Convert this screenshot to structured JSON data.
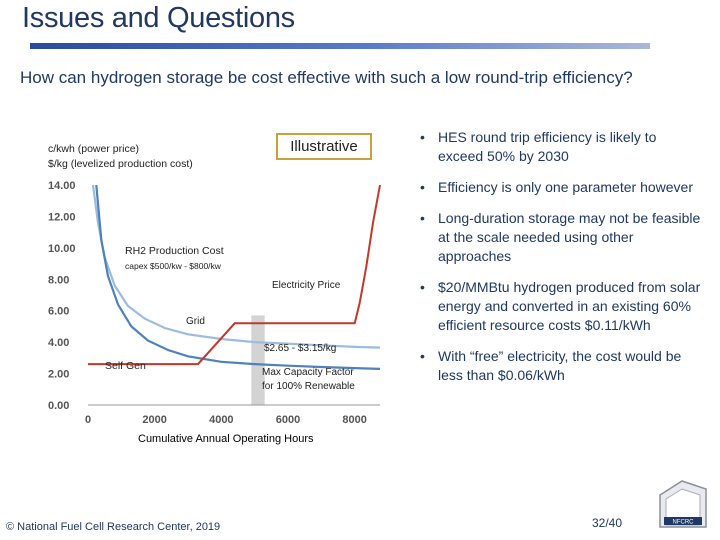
{
  "slide": {
    "title": "Issues and Questions",
    "question": "How can hydrogen storage be cost effective with such a low round-trip efficiency?",
    "footer": "National Fuel Cell Research Center, 2019",
    "copyright_symbol": "©",
    "page_number": "32/40",
    "logo_text": "NFCRC"
  },
  "bullets": [
    "HES round trip efficiency is likely to exceed 50% by 2030",
    "Efficiency is only one parameter however",
    "Long-duration storage may not be feasible at the scale needed using other approaches",
    "$20/MMBtu hydrogen produced from solar energy and converted in an existing 60% efficient resource costs $0.11/kWh",
    "With “free” electricity, the cost would be less than $0.06/kWh"
  ],
  "chart_data": {
    "type": "line",
    "ylabel_lines": [
      "c/kwh (power price)",
      "$/kg (levelized production cost)"
    ],
    "xlabel": "Cumulative Annual Operating Hours",
    "xlim": [
      0,
      8760
    ],
    "ylim": [
      0,
      14
    ],
    "x_ticks": [
      0,
      2000,
      4000,
      6000,
      8000
    ],
    "x_tick_labels": [
      "0",
      "2000",
      "4000",
      "6000",
      "8000"
    ],
    "y_ticks": [
      0,
      2,
      4,
      6,
      8,
      10,
      12,
      14
    ],
    "y_tick_labels": [
      "0.00",
      "2.00",
      "4.00",
      "6.00",
      "8.00",
      "10.00",
      "12.00",
      "14.00"
    ],
    "illustrative_label": "Illustrative",
    "series": [
      {
        "name": "RH2 Production Cost",
        "color": "#9dbbe0",
        "x": [
          150,
          300,
          500,
          800,
          1200,
          1700,
          2300,
          3000,
          4000,
          5000,
          6000,
          7000,
          8000,
          8760
        ],
        "y": [
          14,
          11.6,
          9.4,
          7.6,
          6.3,
          5.5,
          4.9,
          4.5,
          4.2,
          4.0,
          3.9,
          3.8,
          3.7,
          3.65
        ]
      },
      {
        "name": "Self Gen",
        "color": "#4f81bd",
        "x": [
          250,
          400,
          600,
          900,
          1300,
          1800,
          2400,
          3000,
          4000,
          5000,
          6000,
          7000,
          8000,
          8760
        ],
        "y": [
          14,
          10.5,
          8.2,
          6.4,
          5.0,
          4.1,
          3.5,
          3.1,
          2.75,
          2.6,
          2.5,
          2.42,
          2.35,
          2.3
        ]
      },
      {
        "name": "Electricity Price",
        "color": "#c0392b",
        "x": [
          0,
          3300,
          4400,
          8000,
          8150,
          8350,
          8550,
          8760
        ],
        "y": [
          2.6,
          2.6,
          5.2,
          5.2,
          6.5,
          8.8,
          11.6,
          14.0
        ]
      }
    ],
    "annotations": {
      "rh2_label": "RH2 Production Cost",
      "capex_label": "capex $500/kw - $800/kw",
      "electricity_label": "Electricity Price",
      "grid_label": "Grid",
      "price_range_label": "$2.65 - $3.15/kg",
      "self_gen_label": "Self Gen",
      "max_cf_label_1": "Max Capacity Factor",
      "max_cf_label_2": "for 100% Renewable"
    },
    "shaded_band_x": [
      4900,
      5300
    ],
    "grid": false
  }
}
